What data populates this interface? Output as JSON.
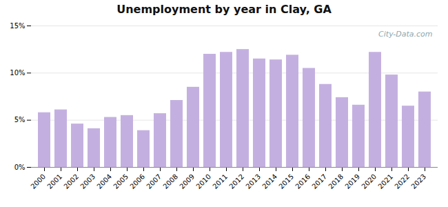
{
  "chart_data": {
    "type": "bar",
    "title": "Unemployment by year in Clay, GA",
    "categories": [
      "2000",
      "2001",
      "2002",
      "2003",
      "2004",
      "2005",
      "2006",
      "2007",
      "2008",
      "2009",
      "2010",
      "2011",
      "2012",
      "2013",
      "2014",
      "2015",
      "2016",
      "2017",
      "2018",
      "2019",
      "2020",
      "2021",
      "2022",
      "2023"
    ],
    "values": [
      5.8,
      6.1,
      4.6,
      4.1,
      5.3,
      5.5,
      3.9,
      5.7,
      7.1,
      8.5,
      12.0,
      12.2,
      12.5,
      11.5,
      11.4,
      11.9,
      10.5,
      8.8,
      7.4,
      6.6,
      12.2,
      9.8,
      6.5,
      8.0
    ],
    "color": "#c4b0e0",
    "ylim": [
      0,
      15
    ],
    "yticks": [
      {
        "value": 0,
        "label": "0%"
      },
      {
        "value": 5,
        "label": "5%"
      },
      {
        "value": 10,
        "label": "10%"
      },
      {
        "value": 15,
        "label": "15%"
      }
    ],
    "grid": true,
    "annotations": [
      "City-Data.com"
    ]
  }
}
